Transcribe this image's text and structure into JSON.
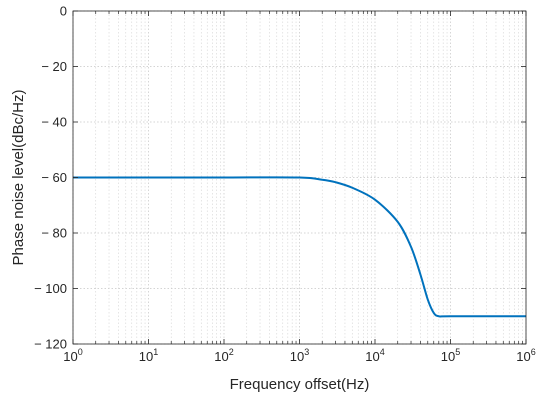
{
  "chart_data": {
    "type": "line",
    "title": "",
    "xlabel": "Frequency offset(Hz)",
    "ylabel": "Phase noise level(dBc/Hz)",
    "xscale": "log",
    "xlim": [
      1,
      1000000
    ],
    "ylim": [
      -120,
      0
    ],
    "grid": true,
    "x_ticks": [
      {
        "base": "10",
        "exp": "0"
      },
      {
        "base": "10",
        "exp": "1"
      },
      {
        "base": "10",
        "exp": "2"
      },
      {
        "base": "10",
        "exp": "3"
      },
      {
        "base": "10",
        "exp": "4"
      },
      {
        "base": "10",
        "exp": "5"
      },
      {
        "base": "10",
        "exp": "6"
      }
    ],
    "y_ticks": [
      "0",
      "− 20",
      "− 40",
      "− 60",
      "− 80",
      "− 100",
      "− 120"
    ],
    "series": [
      {
        "color": "#0072BD",
        "x": [
          1,
          10,
          100,
          1000,
          2000,
          3000,
          5000,
          10000,
          20000,
          30000,
          40000,
          50000,
          60000,
          70000,
          100000,
          1000000
        ],
        "y": [
          -60,
          -60,
          -60,
          -60,
          -60.8,
          -61.7,
          -63.7,
          -68,
          -76,
          -85,
          -95,
          -104,
          -108.8,
          -110,
          -110,
          -110
        ]
      }
    ]
  }
}
